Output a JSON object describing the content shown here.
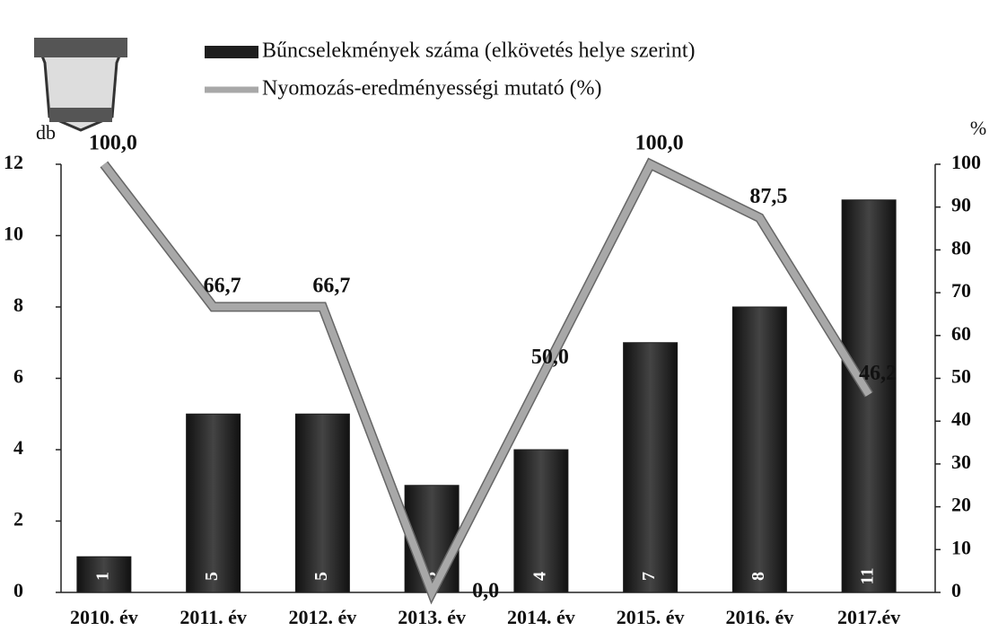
{
  "chart_data": {
    "type": "bar",
    "categories": [
      "2010. év",
      "2011. év",
      "2012. év",
      "2013. év",
      "2014. év",
      "2015. év",
      "2016. év",
      "2017.év"
    ],
    "series": [
      {
        "name": "Bűncselekmények száma (elkövetés helye szerint)",
        "color": "#1e1e1e",
        "values": [
          1,
          5,
          5,
          3,
          4,
          7,
          8,
          11
        ]
      },
      {
        "name": "Nyomozás-eredményességi mutató (%)",
        "color": "#a8a8a8",
        "type": "line",
        "axis": "y2",
        "values": [
          100,
          66.7,
          66.7,
          0,
          50,
          100,
          87.5,
          46.2
        ],
        "value_labels": [
          "100,0",
          "66,7",
          "66,7",
          "0,0",
          "50,0",
          "100,0",
          "87,5",
          "46,2"
        ]
      }
    ],
    "ylabel": "db",
    "y2label": "%",
    "ylim": [
      0,
      12
    ],
    "yticks": [
      0,
      2,
      4,
      6,
      8,
      10,
      12
    ],
    "y2lim": [
      0,
      100
    ],
    "y2ticks": [
      0,
      10,
      20,
      30,
      40,
      50,
      60,
      70,
      80,
      90,
      100
    ]
  }
}
